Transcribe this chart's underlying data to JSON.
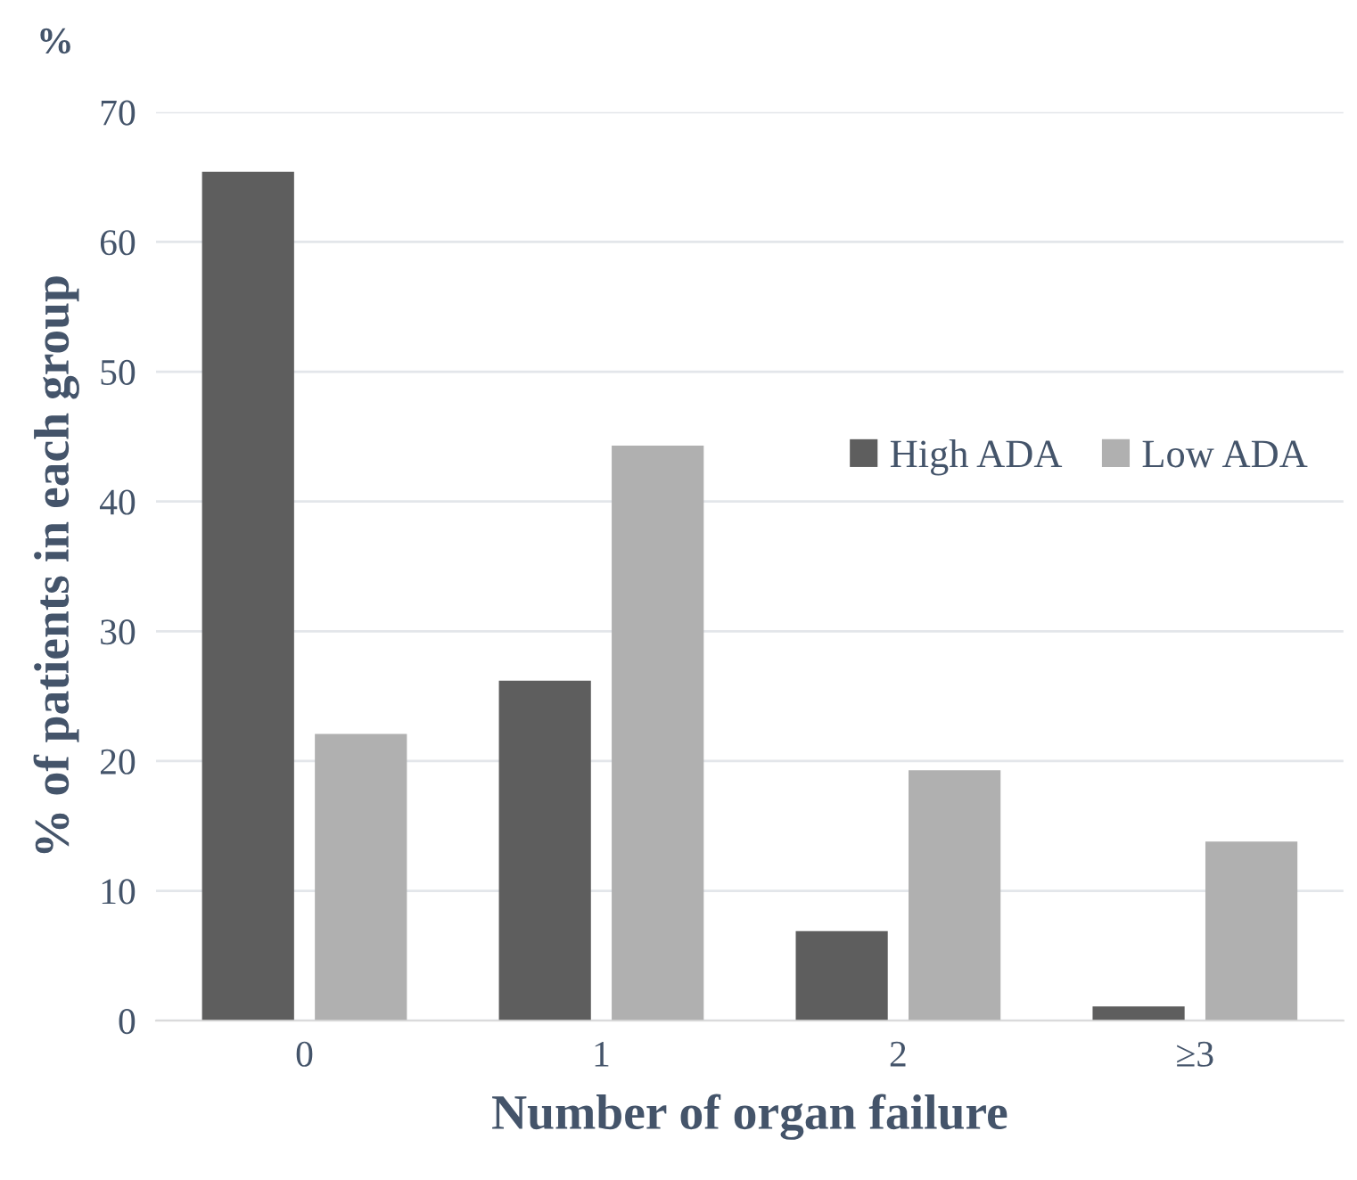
{
  "chart_data": {
    "type": "bar",
    "xlabel": "Number of organ failure",
    "ylabel": "% of patients in each group",
    "annotations": [
      "%"
    ],
    "categories": [
      "0",
      "1",
      "2",
      "≥3"
    ],
    "series": [
      {
        "name": "High ADA",
        "color": "#5e5e5e",
        "values": [
          65.4,
          26.2,
          6.9,
          1.1
        ]
      },
      {
        "name": "Low ADA",
        "color": "#b0b0b0",
        "values": [
          22.1,
          44.3,
          19.3,
          13.8
        ]
      }
    ],
    "ylim": [
      0,
      70
    ],
    "yticks": [
      0,
      10,
      20,
      30,
      40,
      50,
      60,
      70
    ],
    "grid": "y",
    "legend": "right"
  }
}
